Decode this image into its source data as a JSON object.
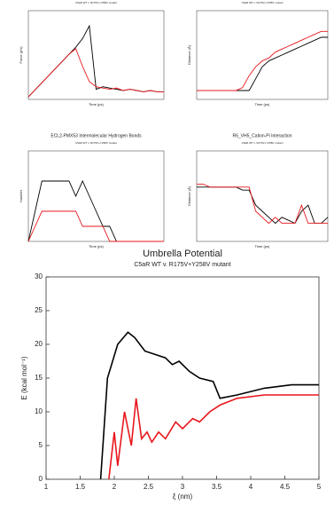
{
  "chart_data": [
    {
      "type": "line",
      "subtitle": "C5aR WT v. R175V+Y258V mutant",
      "x_label": "Time (ps)",
      "y_label": "Force (pN)",
      "x": [
        0,
        50,
        100,
        150,
        200,
        250,
        300,
        350,
        400,
        450,
        500,
        550,
        600,
        650,
        700,
        750,
        800,
        850,
        900,
        950,
        1000
      ],
      "xlim": [
        0,
        1000
      ],
      "ylim": [
        0,
        3500
      ],
      "series": [
        {
          "name": "WT",
          "color": "#000000",
          "values": [
            100,
            380,
            660,
            940,
            1220,
            1500,
            1780,
            2060,
            2400,
            2900,
            400,
            500,
            450,
            400,
            350,
            400,
            350,
            300,
            350,
            300,
            300
          ]
        },
        {
          "name": "mutant",
          "color": "#e8171c",
          "values": [
            100,
            380,
            660,
            940,
            1220,
            1500,
            1780,
            2000,
            1300,
            700,
            500,
            450,
            400,
            450,
            350,
            400,
            350,
            300,
            350,
            300,
            300
          ]
        }
      ]
    },
    {
      "type": "line",
      "subtitle": "C5aR WT v. R175V+Y258V mutant",
      "x_label": "Time (ps)",
      "y_label": "Distance (Å)",
      "x": [
        0,
        50,
        100,
        150,
        200,
        250,
        300,
        350,
        400,
        450,
        500,
        550,
        600,
        650,
        700,
        750,
        800,
        850,
        900,
        950,
        1000
      ],
      "xlim": [
        0,
        1000
      ],
      "ylim": [
        0,
        30
      ],
      "series": [
        {
          "name": "WT",
          "color": "#000000",
          "values": [
            3,
            3,
            3,
            3,
            3,
            3,
            3,
            3,
            3,
            7,
            11,
            13,
            14,
            15,
            16,
            17,
            18,
            19,
            20,
            21,
            21
          ]
        },
        {
          "name": "mutant",
          "color": "#e8171c",
          "values": [
            3,
            3,
            3,
            3,
            3,
            3,
            3,
            4,
            8,
            11,
            13,
            14,
            16,
            17,
            18,
            19,
            20,
            21,
            22,
            23,
            23
          ]
        }
      ]
    },
    {
      "type": "line",
      "title": "ECL2-PMX53 Intermolecular Hydrogen Bonds",
      "subtitle": "C5aR WT v. R175V+Y258V mutant",
      "x_label": "Time (ps)",
      "y_label": "Number",
      "x": [
        0,
        50,
        100,
        150,
        200,
        250,
        300,
        350,
        400,
        450,
        500,
        550,
        600,
        650,
        700,
        750,
        800,
        850,
        900,
        950,
        1000
      ],
      "xlim": [
        0,
        1000
      ],
      "ylim": [
        0,
        6
      ],
      "series": [
        {
          "name": "WT",
          "color": "#000000",
          "values": [
            0,
            2,
            4,
            4,
            4,
            4,
            4,
            3,
            4,
            3,
            2,
            1,
            1,
            0,
            0,
            0,
            0,
            0,
            0,
            0,
            0
          ]
        },
        {
          "name": "mutant",
          "color": "#e8171c",
          "values": [
            0,
            1,
            2,
            2,
            2,
            2,
            2,
            2,
            1,
            1,
            1,
            1,
            0,
            0,
            0,
            0,
            0,
            0,
            0,
            0,
            0
          ]
        }
      ]
    },
    {
      "type": "line",
      "title": "R6_VH5_Cation-Pi Interaction",
      "subtitle": "C5aR WT v. R175V+Y258V mutant",
      "x_label": "Time (ps)",
      "y_label": "Distance (Å)",
      "x": [
        0,
        50,
        100,
        150,
        200,
        250,
        300,
        350,
        400,
        450,
        500,
        550,
        600,
        650,
        700,
        750,
        800,
        850,
        900,
        950,
        1000
      ],
      "xlim": [
        0,
        1000
      ],
      "ylim": [
        0,
        15
      ],
      "series": [
        {
          "name": "WT",
          "color": "#000000",
          "values": [
            9,
            9,
            9,
            9,
            9,
            9,
            9,
            8.5,
            8.5,
            6,
            5,
            4,
            3,
            4,
            3.5,
            3,
            5,
            6,
            3,
            3,
            4
          ]
        },
        {
          "name": "mutant",
          "color": "#e8171c",
          "values": [
            9.5,
            9.5,
            9,
            9,
            9,
            9,
            9,
            9,
            9,
            5,
            4,
            3,
            4,
            3,
            3,
            3,
            6,
            3,
            3,
            3,
            3
          ]
        }
      ]
    },
    {
      "type": "line",
      "title": "Umbrella Potential",
      "subtitle": "C5aR WT v. R175V+Y258V mutant",
      "x_label": "ξ (nm)",
      "y_label": "E (kcal mol⁻¹)",
      "xlim": [
        1,
        5
      ],
      "ylim": [
        0,
        30
      ],
      "xticks": [
        1,
        1.5,
        2,
        2.5,
        3,
        3.5,
        4,
        4.5,
        5
      ],
      "yticks": [
        0,
        5,
        10,
        15,
        20,
        25,
        30
      ],
      "series": [
        {
          "name": "WT",
          "color": "#000000",
          "x": [
            1.8,
            1.9,
            2.05,
            2.2,
            2.3,
            2.45,
            2.6,
            2.75,
            2.85,
            2.95,
            3.1,
            3.25,
            3.45,
            3.55,
            3.8,
            4.2,
            4.6,
            5
          ],
          "values": [
            0,
            15,
            20,
            21.8,
            21,
            19,
            18.5,
            18,
            17,
            17.5,
            16,
            15,
            14.5,
            12,
            12.5,
            13.5,
            14,
            14
          ]
        },
        {
          "name": "mutant",
          "color": "#e8171c",
          "x": [
            1.92,
            2.0,
            2.05,
            2.15,
            2.25,
            2.32,
            2.4,
            2.48,
            2.55,
            2.65,
            2.75,
            2.9,
            3.0,
            3.15,
            3.25,
            3.4,
            3.55,
            3.8,
            4.2,
            5
          ],
          "values": [
            0,
            7,
            2,
            10,
            5,
            12,
            6,
            7,
            5.5,
            7,
            6,
            8.5,
            7.5,
            9,
            8.5,
            10,
            11,
            12,
            12.5,
            12.5
          ]
        }
      ]
    }
  ]
}
